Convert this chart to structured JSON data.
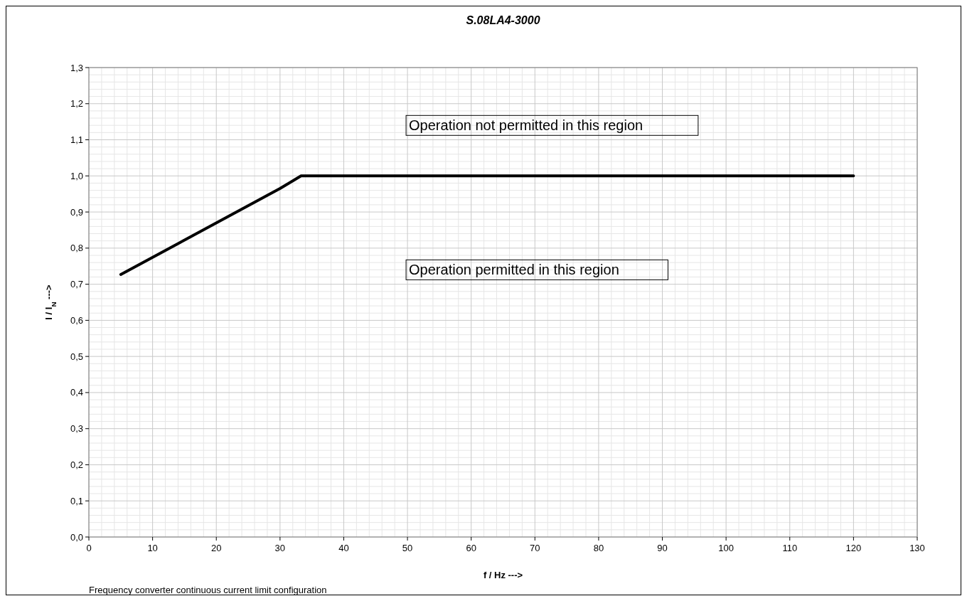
{
  "chart_data": {
    "type": "line",
    "title": "S.08LA4-3000",
    "xlabel": "f / Hz --->",
    "ylabel": "I / I$_{N}$ --->",
    "x": [
      5,
      30,
      33.3,
      120
    ],
    "series": [
      {
        "color": "#000000",
        "values": [
          0.727,
          0.965,
          1.0,
          1.0
        ]
      }
    ],
    "xlim": [
      0,
      130
    ],
    "xticks": [
      0,
      10,
      20,
      30,
      40,
      50,
      60,
      70,
      80,
      90,
      100,
      110,
      120,
      130
    ],
    "ylim": [
      0,
      1.3
    ],
    "yticks": [
      {
        "value": 0,
        "label": "0,0"
      },
      {
        "value": 0.1,
        "label": "0,1"
      },
      {
        "value": 0.2,
        "label": "0,2"
      },
      {
        "value": 0.3,
        "label": "0,3"
      },
      {
        "value": 0.4,
        "label": "0,4"
      },
      {
        "value": 0.5,
        "label": "0,5"
      },
      {
        "value": 0.6,
        "label": "0,6"
      },
      {
        "value": 0.7,
        "label": "0,7"
      },
      {
        "value": 0.8,
        "label": "0,8"
      },
      {
        "value": 0.9,
        "label": "0,9"
      },
      {
        "value": 1.0,
        "label": "1,0"
      },
      {
        "value": 1.1,
        "label": "1,1"
      },
      {
        "value": 1.2,
        "label": "1,2"
      },
      {
        "value": 1.3,
        "label": "1,3"
      }
    ],
    "grid": true,
    "marker": "none",
    "line_style": "solid",
    "annotations": [
      "Operation not permitted in this region",
      "Operation permitted in this region",
      "Frequency converter continuous current limit configuration"
    ]
  }
}
